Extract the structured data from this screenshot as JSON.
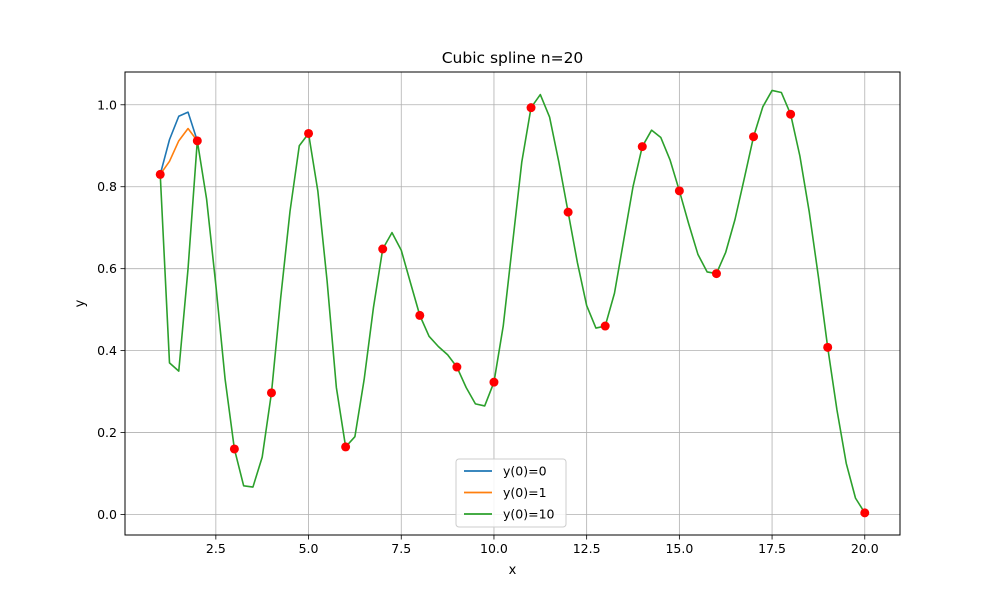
{
  "chart_data": {
    "type": "line",
    "title": "Cubic spline n=20",
    "xlabel": "x",
    "ylabel": "y",
    "xlim": [
      0.05,
      20.95
    ],
    "ylim": [
      -0.05,
      1.08
    ],
    "xticks": [
      2.5,
      5.0,
      7.5,
      10.0,
      12.5,
      15.0,
      17.5,
      20.0
    ],
    "xtick_labels": [
      "2.5",
      "5.0",
      "7.5",
      "10.0",
      "12.5",
      "15.0",
      "17.5",
      "20.0"
    ],
    "yticks": [
      0.0,
      0.2,
      0.4,
      0.6,
      0.8,
      1.0
    ],
    "ytick_labels": [
      "0.0",
      "0.2",
      "0.4",
      "0.6",
      "0.8",
      "1.0"
    ],
    "grid": true,
    "legend_position": "bottom-center",
    "series": [
      {
        "name": "y(0)=0",
        "color": "#1f77b4",
        "x": [
          1.0,
          1.25,
          1.5,
          1.75,
          2.0
        ],
        "y": [
          0.83,
          0.915,
          0.972,
          0.982,
          0.912
        ]
      },
      {
        "name": "y(0)=1",
        "color": "#ff7f0e",
        "x": [
          1.0,
          1.25,
          1.5,
          1.75,
          2.0
        ],
        "y": [
          0.83,
          0.862,
          0.912,
          0.942,
          0.912
        ]
      },
      {
        "name": "y(0)=10",
        "color": "#2ca02c",
        "x": [
          1.0,
          1.25,
          1.5,
          1.75,
          2.0,
          2.25,
          2.5,
          2.75,
          3.0,
          3.25,
          3.5,
          3.75,
          4.0,
          4.25,
          4.5,
          4.75,
          5.0,
          5.25,
          5.5,
          5.75,
          6.0,
          6.25,
          6.5,
          6.75,
          7.0,
          7.25,
          7.5,
          7.75,
          8.0,
          8.25,
          8.5,
          8.75,
          9.0,
          9.25,
          9.5,
          9.75,
          10.0,
          10.25,
          10.5,
          10.75,
          11.0,
          11.25,
          11.5,
          11.75,
          12.0,
          12.25,
          12.5,
          12.75,
          13.0,
          13.25,
          13.5,
          13.75,
          14.0,
          14.25,
          14.5,
          14.75,
          15.0,
          15.25,
          15.5,
          15.75,
          16.0,
          16.25,
          16.5,
          16.75,
          17.0,
          17.25,
          17.5,
          17.75,
          18.0,
          18.25,
          18.5,
          18.75,
          19.0,
          19.25,
          19.5,
          19.75,
          20.0
        ],
        "y": [
          0.83,
          0.37,
          0.35,
          0.6,
          0.912,
          0.77,
          0.56,
          0.33,
          0.16,
          0.07,
          0.067,
          0.14,
          0.297,
          0.53,
          0.74,
          0.9,
          0.93,
          0.79,
          0.57,
          0.31,
          0.165,
          0.19,
          0.33,
          0.505,
          0.648,
          0.688,
          0.645,
          0.565,
          0.486,
          0.435,
          0.41,
          0.39,
          0.36,
          0.31,
          0.27,
          0.265,
          0.323,
          0.46,
          0.66,
          0.86,
          0.993,
          1.025,
          0.97,
          0.86,
          0.738,
          0.615,
          0.51,
          0.455,
          0.46,
          0.54,
          0.67,
          0.8,
          0.898,
          0.938,
          0.92,
          0.865,
          0.79,
          0.71,
          0.635,
          0.592,
          0.588,
          0.64,
          0.72,
          0.82,
          0.922,
          0.995,
          1.035,
          1.03,
          0.977,
          0.875,
          0.74,
          0.58,
          0.408,
          0.255,
          0.125,
          0.04,
          0.004
        ]
      }
    ],
    "points": {
      "color": "#ff0000",
      "x": [
        1,
        2,
        3,
        4,
        5,
        6,
        7,
        8,
        9,
        10,
        11,
        12,
        13,
        14,
        15,
        16,
        17,
        18,
        19,
        20
      ],
      "y": [
        0.83,
        0.912,
        0.16,
        0.297,
        0.93,
        0.165,
        0.648,
        0.486,
        0.36,
        0.323,
        0.993,
        0.738,
        0.46,
        0.898,
        0.79,
        0.588,
        0.922,
        0.977,
        0.408,
        0.004
      ]
    }
  }
}
